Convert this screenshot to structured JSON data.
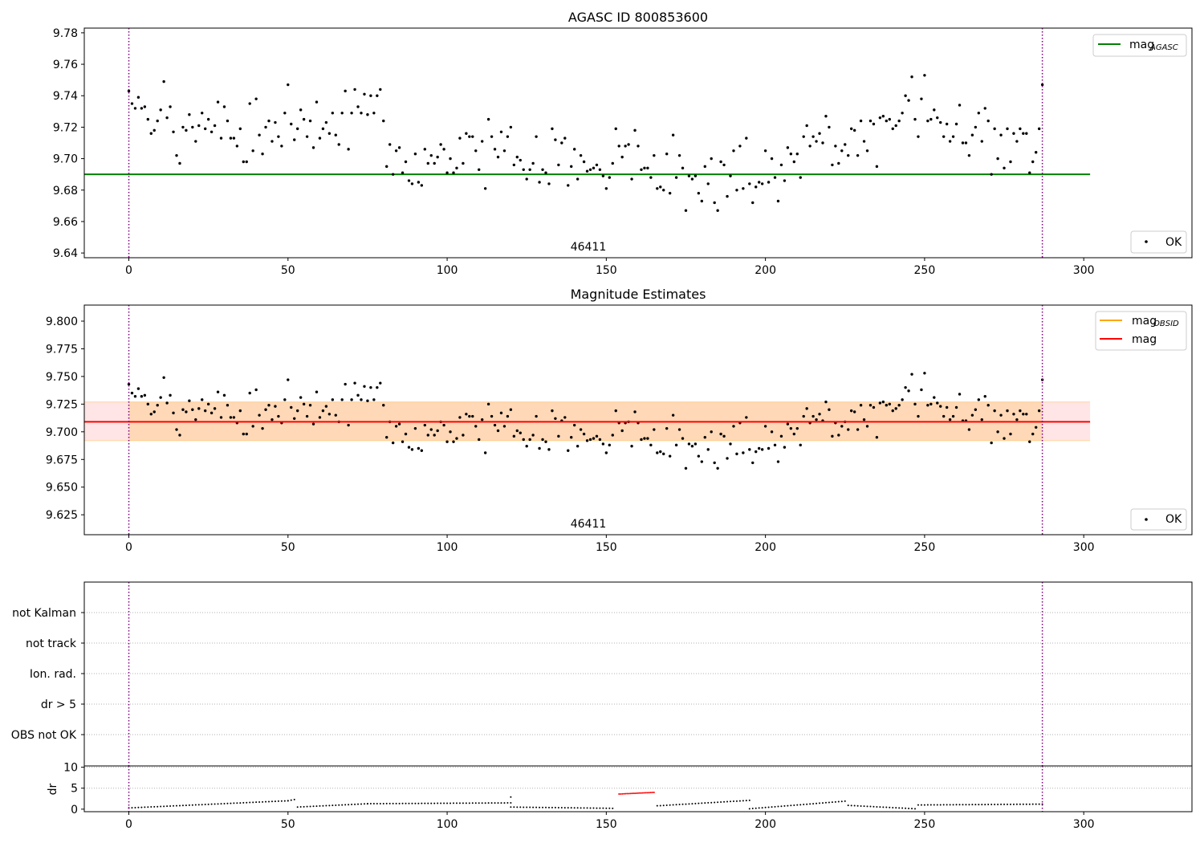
{
  "chart_data": [
    {
      "type": "scatter",
      "title": "AGASC ID 800853600",
      "xlim": [
        -14,
        334
      ],
      "ylim": [
        9.637,
        9.783
      ],
      "x_ticks": [
        0,
        50,
        100,
        150,
        200,
        250,
        300
      ],
      "x_tick_labels": [
        "0",
        "50",
        "100",
        "150",
        "200",
        "250",
        "300"
      ],
      "y_ticks": [
        9.64,
        9.66,
        9.68,
        9.7,
        9.72,
        9.74,
        9.76,
        9.78
      ],
      "y_tick_labels": [
        "9.64",
        "9.66",
        "9.68",
        "9.70",
        "9.72",
        "9.74",
        "9.76",
        "9.78"
      ],
      "obsid_label": "46411",
      "obsid_label_x": 144,
      "vlines": [
        0,
        287
      ],
      "hline": {
        "y": 9.69,
        "x_range": [
          -14,
          302
        ],
        "color": "#008000"
      },
      "legend_top": {
        "label": "mag",
        "sub": "AGASC",
        "color": "#008000"
      },
      "legend_bottom": {
        "label": "OK"
      },
      "series": [
        {
          "name": "OK",
          "color": "#000000"
        }
      ]
    },
    {
      "type": "scatter",
      "title": "Magnitude Estimates",
      "xlim": [
        -14,
        334
      ],
      "ylim": [
        9.607,
        9.8145
      ],
      "x_ticks": [
        0,
        50,
        100,
        150,
        200,
        250,
        300
      ],
      "x_tick_labels": [
        "0",
        "50",
        "100",
        "150",
        "200",
        "250",
        "300"
      ],
      "y_ticks": [
        9.625,
        9.65,
        9.675,
        9.7,
        9.725,
        9.75,
        9.775,
        9.8
      ],
      "y_tick_labels": [
        "9.625",
        "9.650",
        "9.675",
        "9.700",
        "9.725",
        "9.750",
        "9.775",
        "9.800"
      ],
      "obsid_label": "46411",
      "obsid_label_x": 144,
      "vlines": [
        0,
        287
      ],
      "mag_line": 9.709,
      "band_mag": [
        9.692,
        9.727
      ],
      "band_obsid": [
        9.692,
        9.727
      ],
      "x_range": [
        -14,
        302
      ],
      "legend_entries": [
        {
          "label": "mag",
          "sub": "OBSID",
          "color": "#ffa500"
        },
        {
          "label": "mag",
          "sub": "",
          "color": "#ff0000"
        }
      ],
      "legend_bottom": {
        "label": "OK"
      }
    },
    {
      "type": "scatter",
      "xlim": [
        -14,
        334
      ],
      "categories": [
        "not Kalman",
        "not track",
        "Ion. rad.",
        "dr > 5",
        "OBS not OK"
      ],
      "vlines": [
        0,
        287
      ]
    },
    {
      "type": "scatter",
      "ylabel": "dr",
      "xlim": [
        -14,
        334
      ],
      "ylim": [
        -0.6,
        10.3
      ],
      "x_ticks": [
        0,
        50,
        100,
        150,
        200,
        250,
        300
      ],
      "x_tick_labels": [
        "0",
        "50",
        "100",
        "150",
        "200",
        "250",
        "300"
      ],
      "y_ticks": [
        0,
        5,
        10
      ],
      "y_tick_labels": [
        "0",
        "5",
        "10"
      ],
      "vlines": [
        0,
        287
      ],
      "dr_segments": [
        {
          "x0": 0,
          "x1": 50,
          "y0": 0.3,
          "y1": 2.0
        },
        {
          "x0": 50,
          "x1": 52,
          "y0": 2.0,
          "y1": 2.3
        },
        {
          "x0": 53,
          "x1": 75,
          "y0": 0.5,
          "y1": 1.3
        },
        {
          "x0": 75,
          "x1": 120,
          "y0": 1.3,
          "y1": 1.5
        },
        {
          "x0": 120,
          "x1": 152,
          "y0": 0.5,
          "y1": 0.2
        },
        {
          "x0": 166,
          "x1": 195,
          "y0": 0.8,
          "y1": 2.1
        },
        {
          "x0": 195,
          "x1": 225,
          "y0": 0.1,
          "y1": 1.9
        },
        {
          "x0": 226,
          "x1": 247,
          "y0": 0.9,
          "y1": 0.1
        },
        {
          "x0": 248,
          "x1": 287,
          "y0": 1.0,
          "y1": 1.2
        }
      ],
      "dr_red": {
        "x0": 154,
        "x1": 165,
        "y0": 3.6,
        "y1": 4.0,
        "color": "#ff0000"
      },
      "dr_outliers": [
        {
          "x": 120,
          "y": 2.9
        }
      ]
    }
  ],
  "mag_points": [
    [
      0,
      9.743
    ],
    [
      1,
      9.735
    ],
    [
      2,
      9.732
    ],
    [
      3,
      9.739
    ],
    [
      4,
      9.732
    ],
    [
      5,
      9.733
    ],
    [
      6,
      9.725
    ],
    [
      7,
      9.716
    ],
    [
      8,
      9.718
    ],
    [
      9,
      9.724
    ],
    [
      10,
      9.731
    ],
    [
      11,
      9.749
    ],
    [
      12,
      9.726
    ],
    [
      13,
      9.733
    ],
    [
      14,
      9.717
    ],
    [
      15,
      9.702
    ],
    [
      16,
      9.697
    ],
    [
      17,
      9.72
    ],
    [
      18,
      9.718
    ],
    [
      19,
      9.728
    ],
    [
      20,
      9.72
    ],
    [
      21,
      9.711
    ],
    [
      22,
      9.721
    ],
    [
      23,
      9.729
    ],
    [
      24,
      9.719
    ],
    [
      25,
      9.725
    ],
    [
      26,
      9.717
    ],
    [
      27,
      9.721
    ],
    [
      28,
      9.736
    ],
    [
      29,
      9.713
    ],
    [
      30,
      9.733
    ],
    [
      31,
      9.724
    ],
    [
      32,
      9.713
    ],
    [
      33,
      9.713
    ],
    [
      34,
      9.708
    ],
    [
      35,
      9.719
    ],
    [
      36,
      9.698
    ],
    [
      37,
      9.698
    ],
    [
      38,
      9.735
    ],
    [
      39,
      9.705
    ],
    [
      40,
      9.738
    ],
    [
      41,
      9.715
    ],
    [
      42,
      9.703
    ],
    [
      43,
      9.72
    ],
    [
      44,
      9.724
    ],
    [
      45,
      9.711
    ],
    [
      46,
      9.723
    ],
    [
      47,
      9.714
    ],
    [
      48,
      9.708
    ],
    [
      49,
      9.729
    ],
    [
      50,
      9.747
    ],
    [
      51,
      9.722
    ],
    [
      52,
      9.712
    ],
    [
      53,
      9.719
    ],
    [
      54,
      9.731
    ],
    [
      55,
      9.725
    ],
    [
      56,
      9.714
    ],
    [
      57,
      9.724
    ],
    [
      58,
      9.707
    ],
    [
      59,
      9.736
    ],
    [
      60,
      9.713
    ],
    [
      61,
      9.719
    ],
    [
      62,
      9.723
    ],
    [
      63,
      9.716
    ],
    [
      64,
      9.729
    ],
    [
      65,
      9.715
    ],
    [
      66,
      9.709
    ],
    [
      67,
      9.729
    ],
    [
      68,
      9.743
    ],
    [
      69,
      9.706
    ],
    [
      70,
      9.729
    ],
    [
      71,
      9.744
    ],
    [
      72,
      9.733
    ],
    [
      73,
      9.729
    ],
    [
      74,
      9.741
    ],
    [
      75,
      9.728
    ],
    [
      76,
      9.74
    ],
    [
      77,
      9.729
    ],
    [
      78,
      9.74
    ],
    [
      79,
      9.744
    ],
    [
      80,
      9.724
    ],
    [
      81,
      9.695
    ],
    [
      82,
      9.709
    ],
    [
      83,
      9.69
    ],
    [
      84,
      9.705
    ],
    [
      85,
      9.707
    ],
    [
      86,
      9.691
    ],
    [
      87,
      9.698
    ],
    [
      88,
      9.686
    ],
    [
      89,
      9.684
    ],
    [
      90,
      9.703
    ],
    [
      91,
      9.685
    ],
    [
      92,
      9.683
    ],
    [
      93,
      9.706
    ],
    [
      94,
      9.697
    ],
    [
      95,
      9.702
    ],
    [
      96,
      9.697
    ],
    [
      97,
      9.701
    ],
    [
      98,
      9.709
    ],
    [
      99,
      9.706
    ],
    [
      100,
      9.691
    ],
    [
      101,
      9.7
    ],
    [
      102,
      9.691
    ],
    [
      103,
      9.694
    ],
    [
      104,
      9.713
    ],
    [
      105,
      9.697
    ],
    [
      106,
      9.716
    ],
    [
      107,
      9.714
    ],
    [
      108,
      9.714
    ],
    [
      109,
      9.705
    ],
    [
      110,
      9.693
    ],
    [
      111,
      9.711
    ],
    [
      112,
      9.681
    ],
    [
      113,
      9.725
    ],
    [
      114,
      9.714
    ],
    [
      115,
      9.706
    ],
    [
      116,
      9.701
    ],
    [
      117,
      9.717
    ],
    [
      118,
      9.705
    ],
    [
      119,
      9.714
    ],
    [
      120,
      9.72
    ],
    [
      121,
      9.696
    ],
    [
      122,
      9.701
    ],
    [
      123,
      9.699
    ],
    [
      124,
      9.693
    ],
    [
      125,
      9.687
    ],
    [
      126,
      9.693
    ],
    [
      127,
      9.697
    ],
    [
      128,
      9.714
    ],
    [
      129,
      9.685
    ],
    [
      130,
      9.693
    ],
    [
      131,
      9.691
    ],
    [
      132,
      9.684
    ],
    [
      133,
      9.719
    ],
    [
      134,
      9.712
    ],
    [
      135,
      9.696
    ],
    [
      136,
      9.71
    ],
    [
      137,
      9.713
    ],
    [
      138,
      9.683
    ],
    [
      139,
      9.695
    ],
    [
      140,
      9.706
    ],
    [
      141,
      9.687
    ],
    [
      142,
      9.702
    ],
    [
      143,
      9.698
    ],
    [
      144,
      9.692
    ],
    [
      145,
      9.693
    ],
    [
      146,
      9.694
    ],
    [
      147,
      9.696
    ],
    [
      148,
      9.693
    ],
    [
      149,
      9.689
    ],
    [
      150,
      9.681
    ],
    [
      151,
      9.688
    ],
    [
      152,
      9.697
    ],
    [
      153,
      9.719
    ],
    [
      154,
      9.708
    ],
    [
      155,
      9.701
    ],
    [
      156,
      9.708
    ],
    [
      157,
      9.709
    ],
    [
      158,
      9.687
    ],
    [
      159,
      9.718
    ],
    [
      160,
      9.708
    ],
    [
      161,
      9.693
    ],
    [
      162,
      9.694
    ],
    [
      163,
      9.694
    ],
    [
      164,
      9.688
    ],
    [
      165,
      9.702
    ],
    [
      166,
      9.681
    ],
    [
      167,
      9.682
    ],
    [
      168,
      9.68
    ],
    [
      169,
      9.703
    ],
    [
      170,
      9.678
    ],
    [
      171,
      9.715
    ],
    [
      172,
      9.688
    ],
    [
      173,
      9.702
    ],
    [
      174,
      9.694
    ],
    [
      175,
      9.667
    ],
    [
      176,
      9.689
    ],
    [
      177,
      9.687
    ],
    [
      178,
      9.689
    ],
    [
      179,
      9.678
    ],
    [
      180,
      9.673
    ],
    [
      181,
      9.695
    ],
    [
      182,
      9.684
    ],
    [
      183,
      9.7
    ],
    [
      184,
      9.672
    ],
    [
      185,
      9.667
    ],
    [
      186,
      9.698
    ],
    [
      187,
      9.696
    ],
    [
      188,
      9.676
    ],
    [
      189,
      9.689
    ],
    [
      190,
      9.705
    ],
    [
      191,
      9.68
    ],
    [
      192,
      9.708
    ],
    [
      193,
      9.681
    ],
    [
      194,
      9.713
    ],
    [
      195,
      9.684
    ],
    [
      196,
      9.672
    ],
    [
      197,
      9.682
    ],
    [
      198,
      9.685
    ],
    [
      199,
      9.684
    ],
    [
      200,
      9.705
    ],
    [
      201,
      9.685
    ],
    [
      202,
      9.7
    ],
    [
      203,
      9.688
    ],
    [
      204,
      9.673
    ],
    [
      205,
      9.696
    ],
    [
      206,
      9.686
    ],
    [
      207,
      9.707
    ],
    [
      208,
      9.703
    ],
    [
      209,
      9.698
    ],
    [
      210,
      9.703
    ],
    [
      211,
      9.688
    ],
    [
      212,
      9.714
    ],
    [
      213,
      9.721
    ],
    [
      214,
      9.708
    ],
    [
      215,
      9.714
    ],
    [
      216,
      9.711
    ],
    [
      217,
      9.716
    ],
    [
      218,
      9.71
    ],
    [
      219,
      9.727
    ],
    [
      220,
      9.72
    ],
    [
      221,
      9.696
    ],
    [
      222,
      9.708
    ],
    [
      223,
      9.697
    ],
    [
      224,
      9.705
    ],
    [
      225,
      9.709
    ],
    [
      226,
      9.702
    ],
    [
      227,
      9.719
    ],
    [
      228,
      9.718
    ],
    [
      229,
      9.702
    ],
    [
      230,
      9.724
    ],
    [
      231,
      9.711
    ],
    [
      232,
      9.705
    ],
    [
      233,
      9.724
    ],
    [
      234,
      9.722
    ],
    [
      235,
      9.695
    ],
    [
      236,
      9.726
    ],
    [
      237,
      9.727
    ],
    [
      238,
      9.724
    ],
    [
      239,
      9.725
    ],
    [
      240,
      9.719
    ],
    [
      241,
      9.721
    ],
    [
      242,
      9.724
    ],
    [
      243,
      9.729
    ],
    [
      244,
      9.74
    ],
    [
      245,
      9.737
    ],
    [
      246,
      9.752
    ],
    [
      247,
      9.725
    ],
    [
      248,
      9.714
    ],
    [
      249,
      9.738
    ],
    [
      250,
      9.753
    ],
    [
      251,
      9.724
    ],
    [
      252,
      9.725
    ],
    [
      253,
      9.731
    ],
    [
      254,
      9.726
    ],
    [
      255,
      9.723
    ],
    [
      256,
      9.714
    ],
    [
      257,
      9.722
    ],
    [
      258,
      9.711
    ],
    [
      259,
      9.714
    ],
    [
      260,
      9.722
    ],
    [
      261,
      9.734
    ],
    [
      262,
      9.71
    ],
    [
      263,
      9.71
    ],
    [
      264,
      9.702
    ],
    [
      265,
      9.715
    ],
    [
      266,
      9.72
    ],
    [
      267,
      9.729
    ],
    [
      268,
      9.711
    ],
    [
      269,
      9.732
    ],
    [
      270,
      9.724
    ],
    [
      271,
      9.69
    ],
    [
      272,
      9.719
    ],
    [
      273,
      9.7
    ],
    [
      274,
      9.715
    ],
    [
      275,
      9.694
    ],
    [
      276,
      9.719
    ],
    [
      277,
      9.698
    ],
    [
      278,
      9.716
    ],
    [
      279,
      9.711
    ],
    [
      280,
      9.719
    ],
    [
      281,
      9.716
    ],
    [
      282,
      9.716
    ],
    [
      283,
      9.691
    ],
    [
      284,
      9.698
    ],
    [
      285,
      9.704
    ],
    [
      286,
      9.719
    ],
    [
      287,
      9.747
    ]
  ]
}
